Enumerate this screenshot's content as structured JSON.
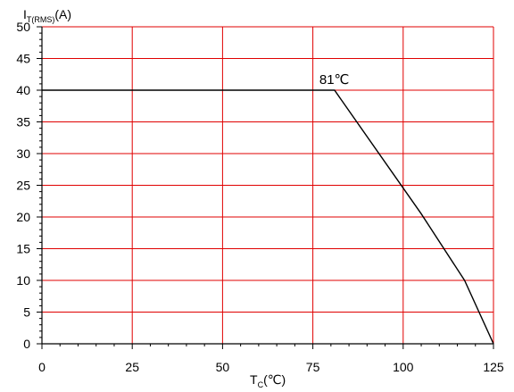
{
  "chart_data": {
    "type": "line",
    "title": "",
    "xlabel": {
      "main": "T",
      "sub": "C",
      "suffix": "(℃)"
    },
    "ylabel": {
      "main": "I",
      "sub": "T(RMS)",
      "suffix": "(A)"
    },
    "xlim": [
      0,
      125
    ],
    "ylim": [
      0,
      50
    ],
    "x_ticks": [
      0,
      25,
      50,
      75,
      100,
      125
    ],
    "y_ticks": [
      0,
      5,
      10,
      15,
      20,
      25,
      30,
      35,
      40,
      45,
      50
    ],
    "grid": true,
    "grid_color": "#e00000",
    "line_color": "#000000",
    "series": [
      {
        "x": [
          0,
          81,
          105,
          117,
          125
        ],
        "y": [
          40,
          40,
          20.5,
          10,
          0
        ]
      }
    ],
    "annotations": [
      {
        "text": "81℃",
        "x": 81,
        "y": 40
      }
    ]
  }
}
